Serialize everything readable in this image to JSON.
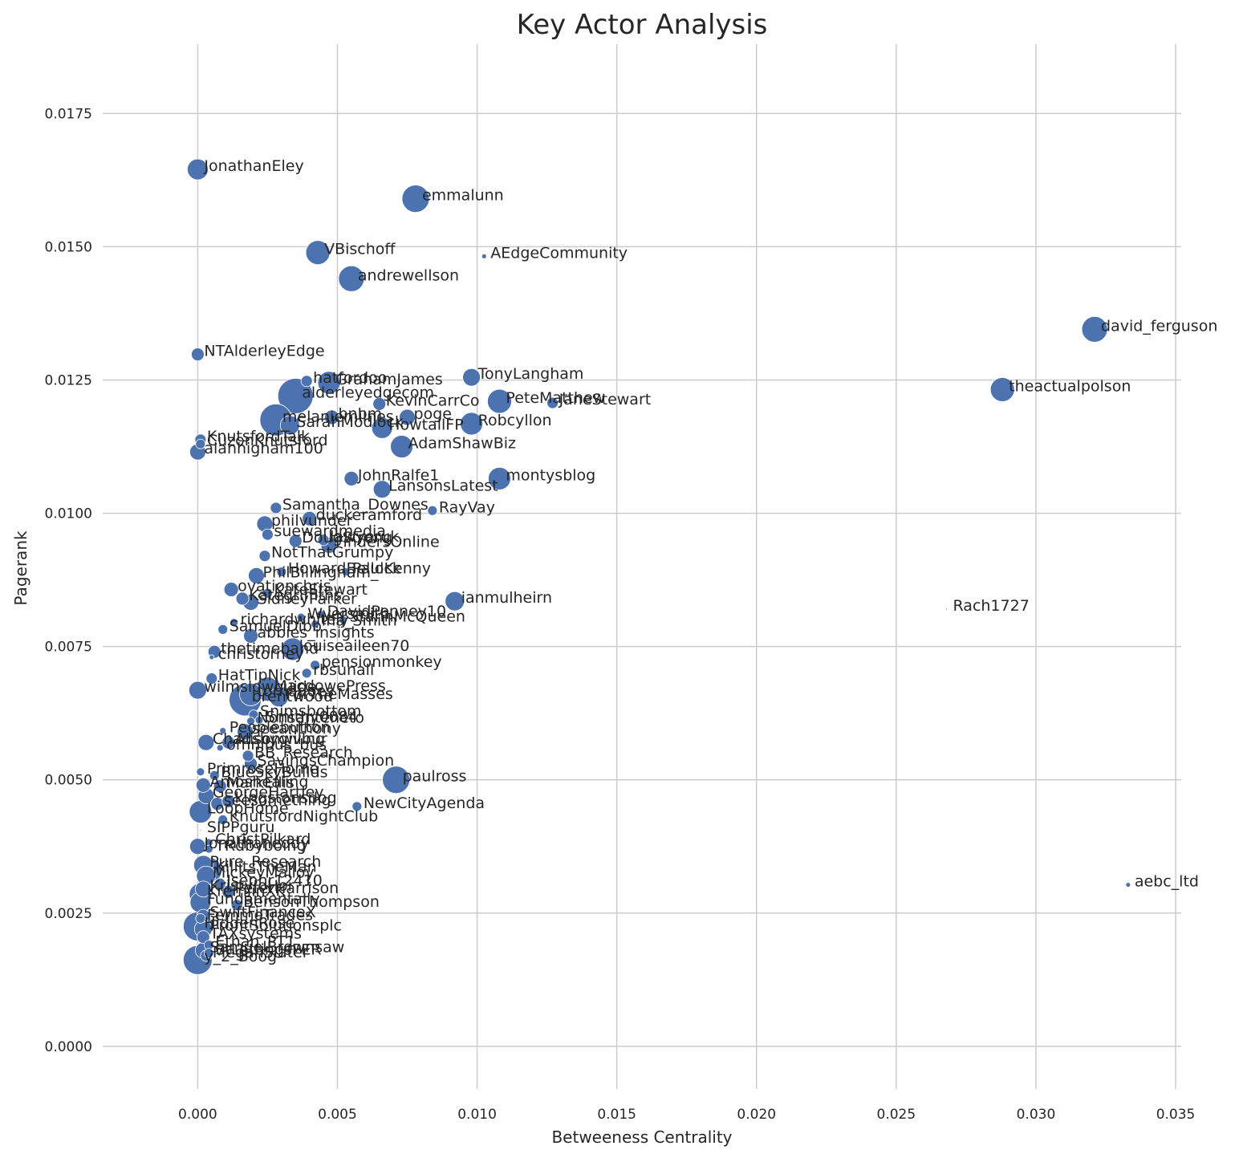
{
  "chart_data": {
    "type": "scatter",
    "title": "Key Actor Analysis",
    "xlabel": "Betweeness Centrality",
    "ylabel": "Pagerank",
    "xlim": [
      -0.0034,
      0.0352
    ],
    "ylim": [
      -0.0008,
      0.0188
    ],
    "xticks": [
      0.0,
      0.005,
      0.01,
      0.015,
      0.02,
      0.025,
      0.03,
      0.035
    ],
    "xtick_labels": [
      "0.000",
      "0.005",
      "0.010",
      "0.015",
      "0.020",
      "0.025",
      "0.030",
      "0.035"
    ],
    "yticks": [
      0.0,
      0.0025,
      0.005,
      0.0075,
      0.01,
      0.0125,
      0.015,
      0.0175
    ],
    "ytick_labels": [
      "0.0000",
      "0.0025",
      "0.0050",
      "0.0075",
      "0.0100",
      "0.0125",
      "0.0150",
      "0.0175"
    ],
    "grid": true,
    "color": "#4c72b0",
    "points": [
      {
        "label": "JonathanEley",
        "x": 0.0,
        "y": 0.01645,
        "s": 13
      },
      {
        "label": "emmalunn",
        "x": 0.0078,
        "y": 0.0159,
        "s": 17
      },
      {
        "label": "VBischoff",
        "x": 0.0043,
        "y": 0.01489,
        "s": 15
      },
      {
        "label": "AEdgeCommunity",
        "x": 0.01025,
        "y": 0.01482,
        "s": 3
      },
      {
        "label": "andrewellson",
        "x": 0.0055,
        "y": 0.0144,
        "s": 16
      },
      {
        "label": "david_ferguson",
        "x": 0.0321,
        "y": 0.01345,
        "s": 16
      },
      {
        "label": "NTAlderleyEdge",
        "x": 0.0,
        "y": 0.01298,
        "s": 8
      },
      {
        "label": "TonyLangham",
        "x": 0.0098,
        "y": 0.01255,
        "s": 11
      },
      {
        "label": "theactualpolson",
        "x": 0.0288,
        "y": 0.01232,
        "s": 15
      },
      {
        "label": "hatfordoo",
        "x": 0.0039,
        "y": 0.01248,
        "s": 7
      },
      {
        "label": "GrahamJames",
        "x": 0.0047,
        "y": 0.01245,
        "s": 14
      },
      {
        "label": "alderleyedgecom",
        "x": 0.0035,
        "y": 0.0122,
        "s": 22
      },
      {
        "label": "KevinCarrCo",
        "x": 0.0065,
        "y": 0.01205,
        "s": 8
      },
      {
        "label": "PeteMatthew",
        "x": 0.0108,
        "y": 0.0121,
        "s": 15
      },
      {
        "label": "JaneStewart",
        "x": 0.0127,
        "y": 0.01207,
        "s": 7
      },
      {
        "label": "bnbm",
        "x": 0.0048,
        "y": 0.0118,
        "s": 9
      },
      {
        "label": "poge",
        "x": 0.0075,
        "y": 0.0118,
        "s": 10
      },
      {
        "label": "melaniemilnes",
        "x": 0.0028,
        "y": 0.01175,
        "s": 20
      },
      {
        "label": "SarahModlock",
        "x": 0.0033,
        "y": 0.01165,
        "s": 12
      },
      {
        "label": "HowtallFP",
        "x": 0.0066,
        "y": 0.0116,
        "s": 13
      },
      {
        "label": "Robcyllon",
        "x": 0.0098,
        "y": 0.01168,
        "s": 14
      },
      {
        "label": "KnutsfordTalk",
        "x": 0.0001,
        "y": 0.01138,
        "s": 7
      },
      {
        "label": "CuzonKnutsford",
        "x": 0.0001,
        "y": 0.0113,
        "s": 6
      },
      {
        "label": "AdamShawBiz",
        "x": 0.0073,
        "y": 0.01125,
        "s": 14
      },
      {
        "label": "alanhigham100",
        "x": 0.0,
        "y": 0.01115,
        "s": 10
      },
      {
        "label": "JohnRalfe1",
        "x": 0.0055,
        "y": 0.01065,
        "s": 9
      },
      {
        "label": "montysblog",
        "x": 0.0108,
        "y": 0.01065,
        "s": 14
      },
      {
        "label": "LansonsLatest",
        "x": 0.0066,
        "y": 0.01045,
        "s": 11
      },
      {
        "label": "Samantha_Downes",
        "x": 0.0028,
        "y": 0.0101,
        "s": 7
      },
      {
        "label": "RayVay",
        "x": 0.0084,
        "y": 0.01005,
        "s": 6
      },
      {
        "label": "philvunder",
        "x": 0.0024,
        "y": 0.0098,
        "s": 10
      },
      {
        "label": "duckeramford",
        "x": 0.004,
        "y": 0.0099,
        "s": 9
      },
      {
        "label": "suewardmedia",
        "x": 0.0025,
        "y": 0.0096,
        "s": 7
      },
      {
        "label": "DougStrong",
        "x": 0.0035,
        "y": 0.00948,
        "s": 8
      },
      {
        "label": "lawyeruk",
        "x": 0.0045,
        "y": 0.0095,
        "s": 7
      },
      {
        "label": "FindersOnline",
        "x": 0.0047,
        "y": 0.0094,
        "s": 10
      },
      {
        "label": "NotThatGrumpy",
        "x": 0.0024,
        "y": 0.0092,
        "s": 7
      },
      {
        "label": "HowardBellock",
        "x": 0.003,
        "y": 0.0089,
        "s": 6
      },
      {
        "label": "PaulKenny",
        "x": 0.0053,
        "y": 0.0089,
        "s": 5
      },
      {
        "label": "PhilBillingham_",
        "x": 0.0021,
        "y": 0.00883,
        "s": 10
      },
      {
        "label": "ovationchris",
        "x": 0.0012,
        "y": 0.00857,
        "s": 9
      },
      {
        "label": "KateStewart",
        "x": 0.0025,
        "y": 0.0085,
        "s": 6
      },
      {
        "label": "Kategriffiths",
        "x": 0.0016,
        "y": 0.0084,
        "s": 8
      },
      {
        "label": "SidneyParker",
        "x": 0.0019,
        "y": 0.00833,
        "s": 10
      },
      {
        "label": "ianmulheirn",
        "x": 0.0092,
        "y": 0.00835,
        "s": 12
      },
      {
        "label": "Rach1727",
        "x": 0.0268,
        "y": 0.0082,
        "s": 1
      },
      {
        "label": "DavidPenney10",
        "x": 0.0044,
        "y": 0.0081,
        "s": 5
      },
      {
        "label": "Wyersmith",
        "x": 0.0037,
        "y": 0.00805,
        "s": 5
      },
      {
        "label": "StannMcQueen",
        "x": 0.0052,
        "y": 0.008,
        "s": 5
      },
      {
        "label": "richardwhitely",
        "x": 0.0013,
        "y": 0.00795,
        "s": 5
      },
      {
        "label": "Ina_Smith",
        "x": 0.0042,
        "y": 0.00792,
        "s": 5
      },
      {
        "label": "SamuelDibb",
        "x": 0.0009,
        "y": 0.00782,
        "s": 6
      },
      {
        "label": "abbies_insights",
        "x": 0.0019,
        "y": 0.0077,
        "s": 9
      },
      {
        "label": "thetimeband",
        "x": 0.0006,
        "y": 0.0074,
        "s": 8
      },
      {
        "label": "louiseaileen70",
        "x": 0.0034,
        "y": 0.00745,
        "s": 14
      },
      {
        "label": "christorney",
        "x": 0.0005,
        "y": 0.0073,
        "s": 3
      },
      {
        "label": "HatTipNick",
        "x": 0.0005,
        "y": 0.0069,
        "s": 7
      },
      {
        "label": "pensionmonkey",
        "x": 0.0042,
        "y": 0.00715,
        "s": 6
      },
      {
        "label": "rbsunall",
        "x": 0.0039,
        "y": 0.007,
        "s": 6
      },
      {
        "label": "wilmslowguide",
        "x": 0.0,
        "y": 0.00668,
        "s": 11
      },
      {
        "label": "MacdowePress",
        "x": 0.0025,
        "y": 0.0067,
        "s": 15
      },
      {
        "label": "tornadoes",
        "x": 0.0019,
        "y": 0.0066,
        "s": 14
      },
      {
        "label": "brentwood",
        "x": 0.0017,
        "y": 0.0065,
        "s": 20
      },
      {
        "label": "ForTheMasses",
        "x": 0.0029,
        "y": 0.00655,
        "s": 12
      },
      {
        "label": "Snimsbottom",
        "x": 0.002,
        "y": 0.00622,
        "s": 6
      },
      {
        "label": "Smithy0084",
        "x": 0.0022,
        "y": 0.00612,
        "s": 5
      },
      {
        "label": "Nonsanteneto",
        "x": 0.0019,
        "y": 0.0061,
        "s": 5
      },
      {
        "label": "Peoplebutton",
        "x": 0.0009,
        "y": 0.00592,
        "s": 4
      },
      {
        "label": "seeanthony",
        "x": 0.0017,
        "y": 0.0059,
        "s": 10
      },
      {
        "label": "Chadsbygiving",
        "x": 0.0003,
        "y": 0.0057,
        "s": 10
      },
      {
        "label": "Alisonwilbur",
        "x": 0.0011,
        "y": 0.0057,
        "s": 8
      },
      {
        "label": "omnibus_bus",
        "x": 0.0008,
        "y": 0.0056,
        "s": 4
      },
      {
        "label": "BB_Research",
        "x": 0.0018,
        "y": 0.00545,
        "s": 7
      },
      {
        "label": "SavingsChampion",
        "x": 0.0019,
        "y": 0.0053,
        "s": 8
      },
      {
        "label": "paulross",
        "x": 0.0071,
        "y": 0.005,
        "s": 17
      },
      {
        "label": "PrimroseHome",
        "x": 0.0001,
        "y": 0.00515,
        "s": 5
      },
      {
        "label": "BlueSkyBuilds",
        "x": 0.0006,
        "y": 0.00508,
        "s": 6
      },
      {
        "label": "Amoshealing",
        "x": 0.0002,
        "y": 0.0049,
        "s": 9
      },
      {
        "label": "MarkEllis",
        "x": 0.0008,
        "y": 0.00488,
        "s": 8
      },
      {
        "label": "GeorgeHartley",
        "x": 0.0003,
        "y": 0.0047,
        "s": 10
      },
      {
        "label": "NewCityAgenda",
        "x": 0.0057,
        "y": 0.0045,
        "s": 6
      },
      {
        "label": "seesomething",
        "x": 0.0007,
        "y": 0.00455,
        "s": 8
      },
      {
        "label": "kingstonsdog",
        "x": 0.0011,
        "y": 0.0046,
        "s": 8
      },
      {
        "label": "KnutsfordNightClub",
        "x": 0.0009,
        "y": 0.00425,
        "s": 6
      },
      {
        "label": "LoopHome",
        "x": 0.0001,
        "y": 0.0044,
        "s": 14
      },
      {
        "label": "SIPPguru",
        "x": 0.0001,
        "y": 0.00405,
        "s": 1
      },
      {
        "label": "Jonathaneddy",
        "x": 0.0,
        "y": 0.00375,
        "s": 10
      },
      {
        "label": "ChristPilkard",
        "x": 0.0004,
        "y": 0.00382,
        "s": 5
      },
      {
        "label": "TRdbyboing",
        "x": 0.0004,
        "y": 0.0037,
        "s": 5
      },
      {
        "label": "Pure_Research",
        "x": 0.0002,
        "y": 0.0034,
        "s": 12
      },
      {
        "label": "KillitsTheMan",
        "x": 0.0004,
        "y": 0.0033,
        "s": 16
      },
      {
        "label": "MickeyMalloy",
        "x": 0.0003,
        "y": 0.0032,
        "s": 12
      },
      {
        "label": "Jsephr12410",
        "x": 0.0008,
        "y": 0.00305,
        "s": 7
      },
      {
        "label": "aebc_ltd",
        "x": 0.0333,
        "y": 0.00303,
        "s": 3
      },
      {
        "label": "KristyJoHor",
        "x": 0.0002,
        "y": 0.00295,
        "s": 10
      },
      {
        "label": "PeterHarrison",
        "x": 0.0011,
        "y": 0.0029,
        "s": 8
      },
      {
        "label": "KremlinXK",
        "x": 0.0001,
        "y": 0.00285,
        "s": 14
      },
      {
        "label": "BensonThompson",
        "x": 0.0014,
        "y": 0.00265,
        "s": 7
      },
      {
        "label": "Fundamentally",
        "x": 0.0001,
        "y": 0.0027,
        "s": 13
      },
      {
        "label": "SwiftFinanceX",
        "x": 0.0002,
        "y": 0.00245,
        "s": 8
      },
      {
        "label": "FemmeTrades",
        "x": 0.0001,
        "y": 0.0024,
        "s": 6
      },
      {
        "label": "HiddenRose",
        "x": 0.0,
        "y": 0.00225,
        "s": 18
      },
      {
        "label": "ProfitSolutionsplc",
        "x": 0.0002,
        "y": 0.0022,
        "s": 11
      },
      {
        "label": "TAXsystems",
        "x": 0.0002,
        "y": 0.00205,
        "s": 8
      },
      {
        "label": "Ethan_PT1",
        "x": 0.0004,
        "y": 0.0019,
        "s": 6
      },
      {
        "label": "SamuelBrownsaw",
        "x": 0.0002,
        "y": 0.0018,
        "s": 10
      },
      {
        "label": "y_2_Boog",
        "x": 0.0,
        "y": 0.00162,
        "s": 18
      },
      {
        "label": "StLettingsPER",
        "x": 0.0004,
        "y": 0.00175,
        "s": 6
      },
      {
        "label": "MeganSlater",
        "x": 0.0003,
        "y": 0.0017,
        "s": 7
      }
    ]
  }
}
